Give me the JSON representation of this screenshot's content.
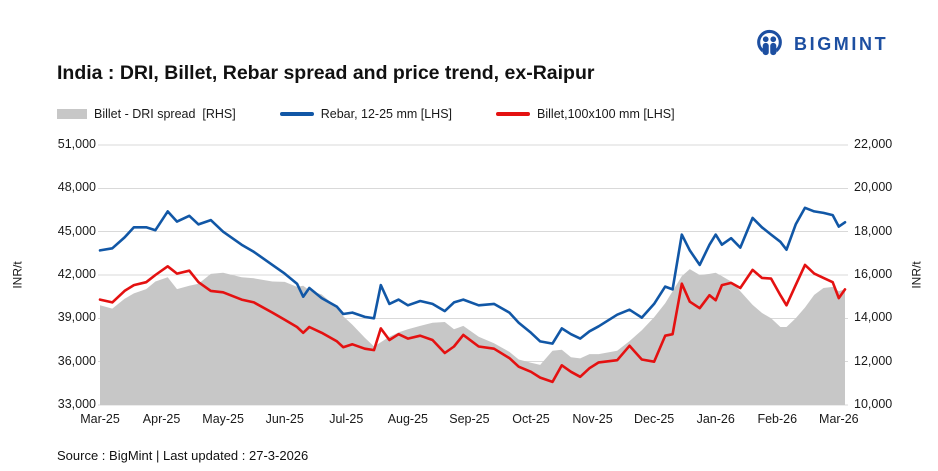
{
  "logo": {
    "text": "BIGMINT",
    "color": "#1d4fa1"
  },
  "title": "India : DRI, Billet, Rebar spread and price trend, ex-Raipur",
  "legend": [
    {
      "label": "Billet - DRI spread  [RHS]",
      "type": "area",
      "color": "#c7c7c7"
    },
    {
      "label": "Rebar, 12-25 mm [LHS]",
      "type": "line",
      "color": "#1157a6"
    },
    {
      "label": "Billet,100x100 mm [LHS]",
      "type": "line",
      "color": "#e41111"
    }
  ],
  "source_note": "Source : BigMint | Last updated : 27-3-2026",
  "chart_data": {
    "type": "line+area",
    "title": "India : DRI, Billet, Rebar spread and price trend, ex-Raipur",
    "x_unit": "months since Mar-2025",
    "x_tick_labels": [
      "Mar-25",
      "Apr-25",
      "May-25",
      "Jun-25",
      "Jul-25",
      "Aug-25",
      "Sep-25",
      "Oct-25",
      "Nov-25",
      "Dec-25",
      "Jan-26",
      "Feb-26",
      "Mar-26"
    ],
    "grid": true,
    "legend_position": "top",
    "left_axis": {
      "label": "INR/t",
      "min": 33000,
      "max": 51000,
      "step": 3000,
      "tick_labels": [
        "51,000",
        "48,000",
        "45,000",
        "42,000",
        "39,000",
        "36,000",
        "33,000"
      ]
    },
    "right_axis": {
      "label": "INR/t",
      "min": 10000,
      "max": 22000,
      "step": 2000,
      "tick_labels": [
        "22,000",
        "20,000",
        "18,000",
        "16,000",
        "14,000",
        "12,000",
        "10,000"
      ]
    },
    "x": [
      0,
      0.2,
      0.4,
      0.55,
      0.75,
      0.9,
      1.1,
      1.25,
      1.45,
      1.6,
      1.8,
      2.0,
      2.3,
      2.5,
      2.8,
      3.0,
      3.2,
      3.3,
      3.4,
      3.6,
      3.85,
      3.95,
      4.1,
      4.3,
      4.45,
      4.56,
      4.7,
      4.85,
      5.0,
      5.2,
      5.4,
      5.6,
      5.75,
      5.9,
      6.15,
      6.4,
      6.65,
      6.8,
      7.0,
      7.15,
      7.35,
      7.5,
      7.65,
      7.8,
      7.95,
      8.1,
      8.4,
      8.6,
      8.8,
      9.0,
      9.18,
      9.3,
      9.45,
      9.58,
      9.74,
      9.9,
      10.0,
      10.1,
      10.25,
      10.4,
      10.6,
      10.75,
      10.9,
      11.05,
      11.15,
      11.3,
      11.45,
      11.6,
      11.75,
      11.9,
      12.0,
      12.1
    ],
    "series": [
      {
        "name": "Billet - DRI spread",
        "slug": "spread-area",
        "axis": "right",
        "type": "area",
        "color": "#c7c7c7",
        "values": [
          14600,
          14450,
          14900,
          15150,
          15350,
          15700,
          15900,
          15350,
          15500,
          15600,
          16050,
          16100,
          15900,
          15850,
          15700,
          15680,
          15450,
          15500,
          15300,
          15100,
          14500,
          14100,
          13700,
          13100,
          12700,
          12900,
          13150,
          13350,
          13500,
          13650,
          13800,
          13830,
          13500,
          13650,
          13150,
          12850,
          12450,
          12100,
          11950,
          11850,
          12500,
          12550,
          12200,
          12150,
          12350,
          12350,
          12500,
          12950,
          13450,
          14050,
          14700,
          15250,
          15950,
          16270,
          16000,
          16050,
          16100,
          15950,
          15700,
          15250,
          14620,
          14250,
          14000,
          13600,
          13600,
          14000,
          14500,
          15080,
          15400,
          15450,
          15250,
          15350
        ]
      },
      {
        "name": "Rebar, 12-25 mm",
        "slug": "rebar-line",
        "axis": "left",
        "type": "line",
        "color": "#1157a6",
        "values": [
          43700,
          43850,
          44600,
          45300,
          45300,
          45100,
          46400,
          45700,
          46100,
          45500,
          45800,
          45000,
          44100,
          43600,
          42700,
          42100,
          41400,
          40500,
          41100,
          40400,
          39800,
          39300,
          39400,
          39100,
          39000,
          41300,
          40000,
          40300,
          39900,
          40200,
          40000,
          39500,
          40100,
          40300,
          39900,
          40000,
          39400,
          38700,
          38000,
          37400,
          37250,
          38300,
          37900,
          37600,
          38100,
          38450,
          39250,
          39600,
          39050,
          40000,
          41200,
          41000,
          44800,
          43700,
          42700,
          44100,
          44800,
          44100,
          44550,
          43900,
          45950,
          45300,
          44800,
          44300,
          43750,
          45500,
          46650,
          46400,
          46300,
          46150,
          45350,
          45650
        ]
      },
      {
        "name": "Billet,100x100 mm",
        "slug": "billet-line",
        "axis": "left",
        "type": "line",
        "color": "#e41111",
        "values": [
          40300,
          40100,
          40900,
          41300,
          41500,
          42000,
          42600,
          42100,
          42300,
          41500,
          40900,
          40800,
          40300,
          40100,
          39400,
          38900,
          38400,
          38000,
          38400,
          38000,
          37400,
          37000,
          37200,
          36900,
          36800,
          38300,
          37500,
          37900,
          37600,
          37800,
          37500,
          36600,
          37050,
          37850,
          37050,
          36900,
          36250,
          35650,
          35300,
          34900,
          34600,
          35750,
          35300,
          34950,
          35550,
          35950,
          36100,
          37100,
          36150,
          36000,
          37800,
          37900,
          41400,
          40150,
          39700,
          40600,
          40250,
          41300,
          41450,
          41100,
          42350,
          41800,
          41750,
          40600,
          39900,
          41300,
          42700,
          42100,
          41800,
          41500,
          40400,
          41000
        ]
      }
    ]
  }
}
